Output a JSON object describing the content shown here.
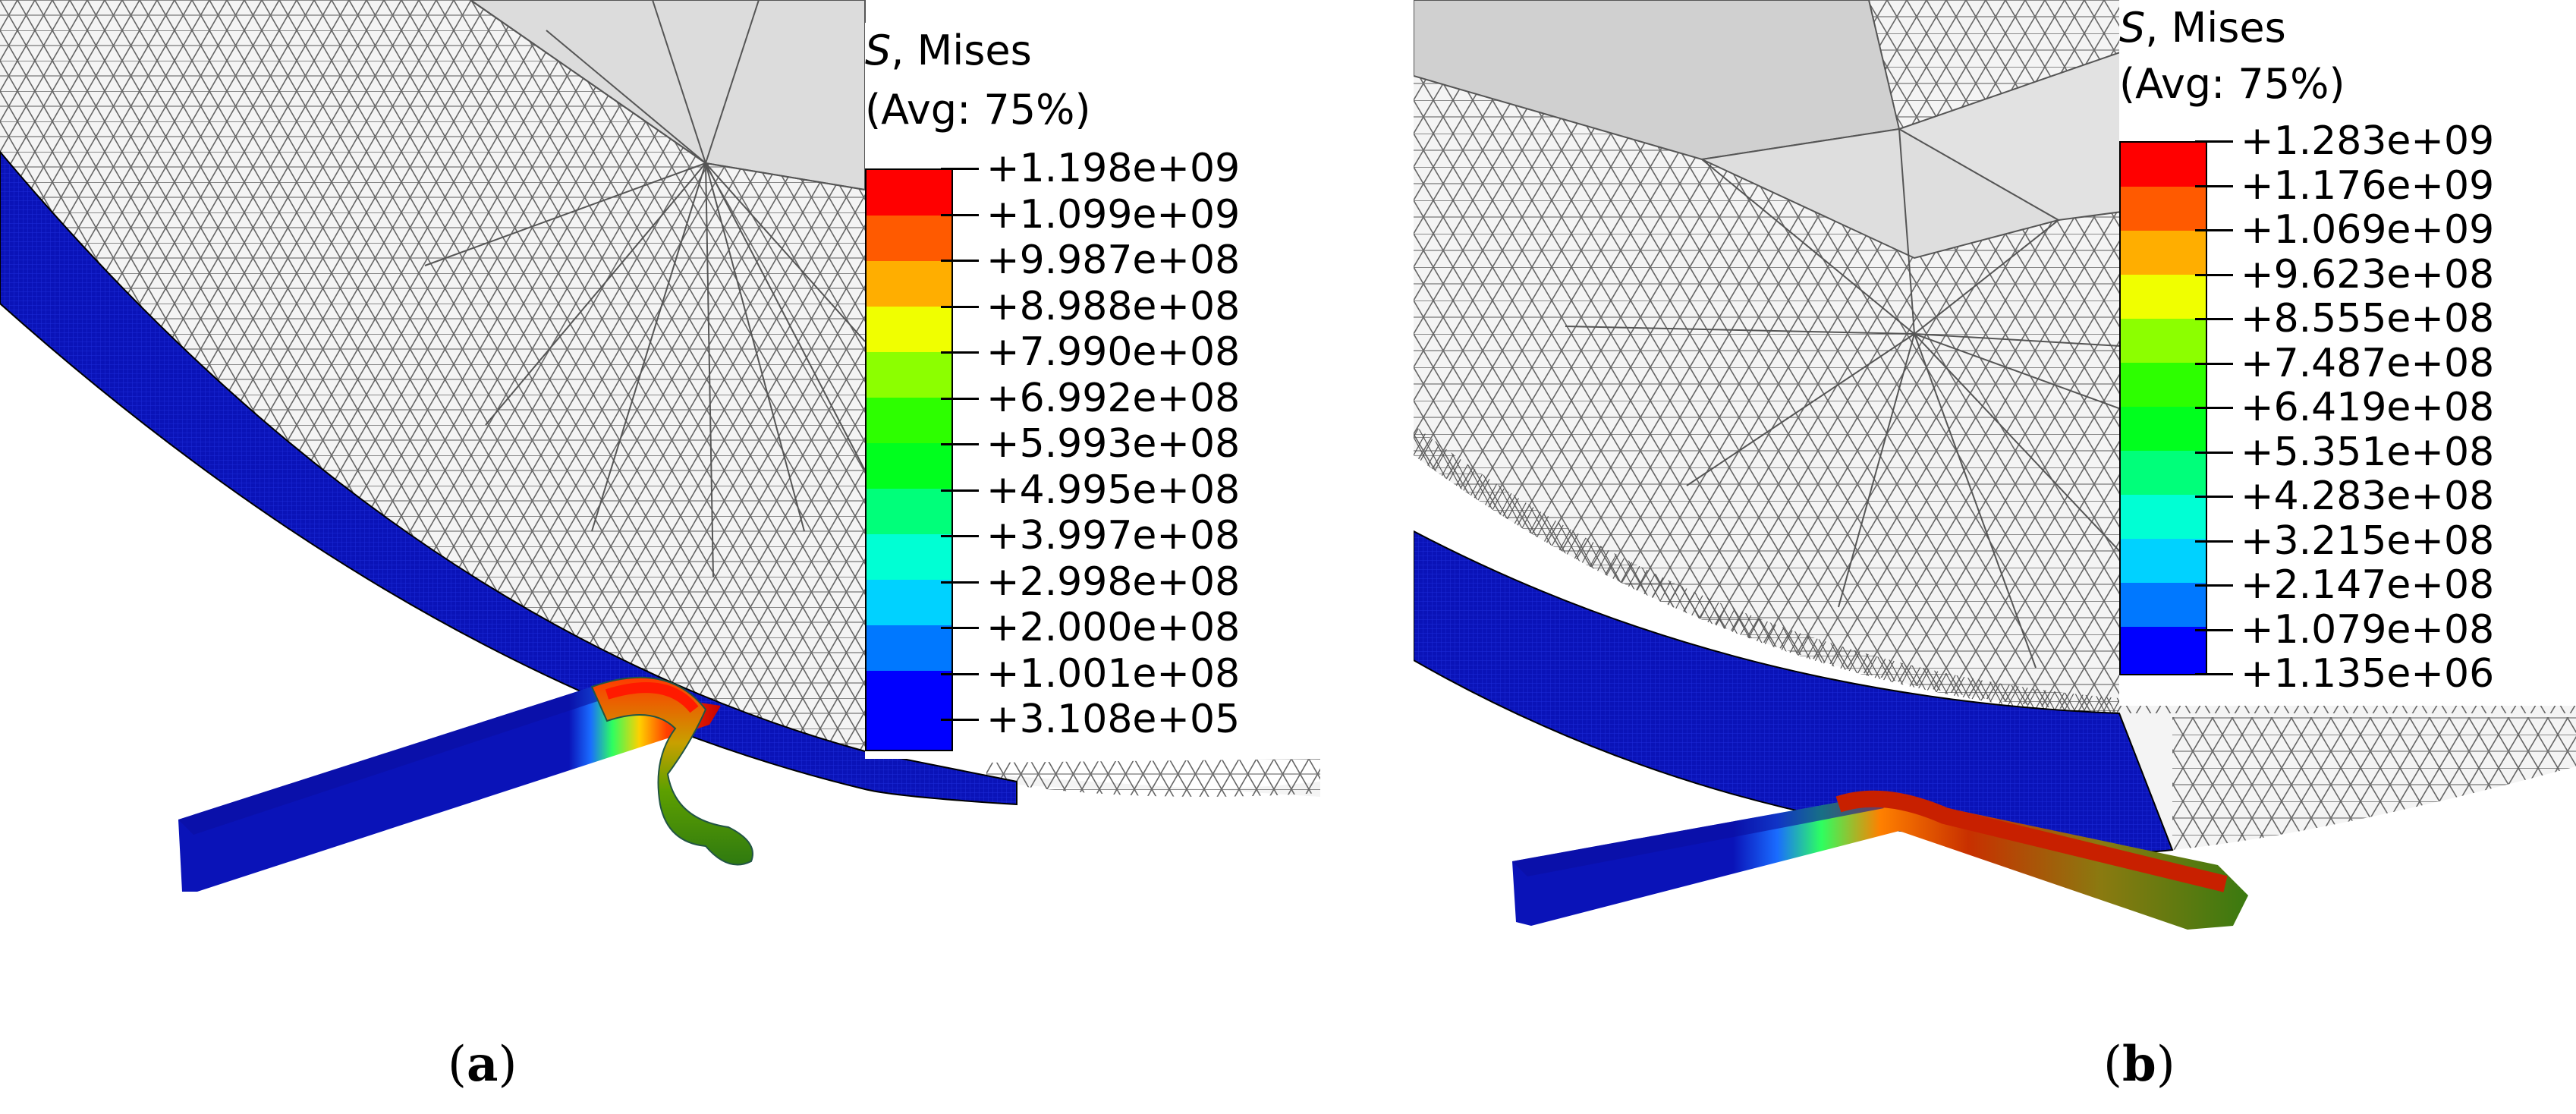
{
  "figure": {
    "panels": [
      {
        "id": "a",
        "caption_letter": "a",
        "legend": {
          "variable": "S",
          "component": "Mises",
          "averaging": "(Avg: 75%)",
          "values": [
            "+1.198e+09",
            "+1.099e+09",
            "+9.987e+08",
            "+8.988e+08",
            "+7.990e+08",
            "+6.992e+08",
            "+5.993e+08",
            "+4.995e+08",
            "+3.997e+08",
            "+2.998e+08",
            "+2.000e+08",
            "+1.001e+08",
            "+3.108e+05"
          ]
        }
      },
      {
        "id": "b",
        "caption_letter": "b",
        "legend": {
          "variable": "S",
          "component": "Mises",
          "averaging": "(Avg: 75%)",
          "values": [
            "+1.283e+09",
            "+1.176e+09",
            "+1.069e+09",
            "+9.623e+08",
            "+8.555e+08",
            "+7.487e+08",
            "+6.419e+08",
            "+5.351e+08",
            "+4.283e+08",
            "+3.215e+08",
            "+2.147e+08",
            "+1.079e+08",
            "+1.135e+06"
          ]
        }
      }
    ],
    "contour_colors": [
      "#ff0000",
      "#ff5a00",
      "#ffae00",
      "#f0ff00",
      "#8cff00",
      "#2dff00",
      "#00ff1e",
      "#00ff7a",
      "#00ffd4",
      "#00d2ff",
      "#0078ff",
      "#001eff",
      "#0000ff"
    ],
    "mesh_colors": {
      "wheel_rim": "#0a13b8",
      "mesh_line": "#555555",
      "mesh_fill": "#f4f4f4",
      "mesh_fill_dark": "#d6d6d6"
    }
  }
}
